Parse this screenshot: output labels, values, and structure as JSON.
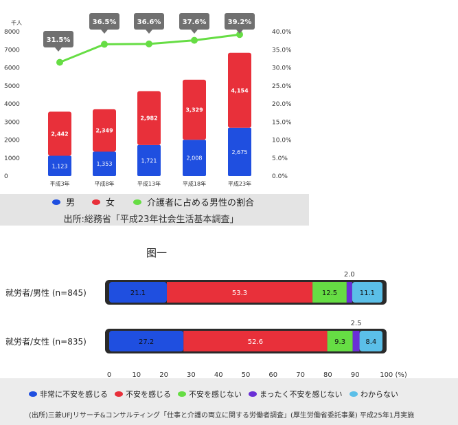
{
  "figure_caption": "图一",
  "chart_data": [
    {
      "type": "bar",
      "stacked": true,
      "secondary_axis_type": "line",
      "y_unit_label": "千人",
      "categories": [
        "平成3年",
        "平成8年",
        "平成13年",
        "平成18年",
        "平成23年"
      ],
      "series": [
        {
          "name": "男",
          "color": "#1f4fe0",
          "values": [
            1123,
            1353,
            1721,
            2008,
            2675
          ]
        },
        {
          "name": "女",
          "color": "#e8303a",
          "values": [
            2442,
            2349,
            2982,
            3329,
            4154
          ]
        }
      ],
      "value_labels": {
        "男": [
          "1,123",
          "1,353",
          "1,721",
          "2,008",
          "2,675"
        ],
        "女": [
          "2,442",
          "2,349",
          "2,982",
          "3,329",
          "4,154"
        ]
      },
      "line_series": {
        "name": "介護者に占める男性の割合",
        "color": "#66dd44",
        "values": [
          31.5,
          36.5,
          36.6,
          37.6,
          39.2
        ],
        "labels": [
          "31.5%",
          "36.5%",
          "36.6%",
          "37.6%",
          "39.2%"
        ]
      },
      "ylim": [
        0,
        8000
      ],
      "yticks": [
        "0",
        "1000",
        "2000",
        "3000",
        "4000",
        "5000",
        "6000",
        "7000",
        "8000"
      ],
      "y2lim": [
        0,
        40
      ],
      "y2ticks": [
        "0.0%",
        "5.0%",
        "10.0%",
        "15.0%",
        "20.0%",
        "25.0%",
        "30.0%",
        "35.0%",
        "40.0%"
      ],
      "legend": [
        {
          "label": "男",
          "color": "#1f4fe0"
        },
        {
          "label": "女",
          "color": "#e8303a"
        },
        {
          "label": "介護者に占める男性の割合",
          "color": "#66dd44"
        }
      ],
      "source": "出所:総務省「平成23年社会生活基本調査」"
    },
    {
      "type": "bar",
      "orientation": "horizontal",
      "stacked": true,
      "categories": [
        "就労者/男性 (n=845)",
        "就労者/女性 (n=835)"
      ],
      "series": [
        {
          "name": "非常に不安を感じる",
          "color": "#1f4fe0",
          "values": [
            21.1,
            27.2
          ]
        },
        {
          "name": "不安を感じる",
          "color": "#e8303a",
          "values": [
            53.3,
            52.6
          ]
        },
        {
          "name": "不安を感じない",
          "color": "#66dd44",
          "values": [
            12.5,
            9.3
          ]
        },
        {
          "name": "まったく不安を感じない",
          "color": "#6a2fd6",
          "values": [
            2.0,
            2.5
          ]
        },
        {
          "name": "わからない",
          "color": "#5bbfe8",
          "values": [
            11.1,
            8.4
          ]
        }
      ],
      "value_labels": [
        [
          "21.1",
          "53.3",
          "12.5",
          "2.0",
          "11.1"
        ],
        [
          "27.2",
          "52.6",
          "9.3",
          "2.5",
          "8.4"
        ]
      ],
      "xlim": [
        0,
        100
      ],
      "xticks": [
        "0",
        "10",
        "20",
        "30",
        "40",
        "50",
        "60",
        "70",
        "80",
        "90",
        "100 (%)"
      ],
      "source": "(出所)三菱UFJリサーチ&コンサルティング「仕事と介護の両立に関する労働者調査」(厚生労働省委託事業) 平成25年1月実施"
    }
  ]
}
